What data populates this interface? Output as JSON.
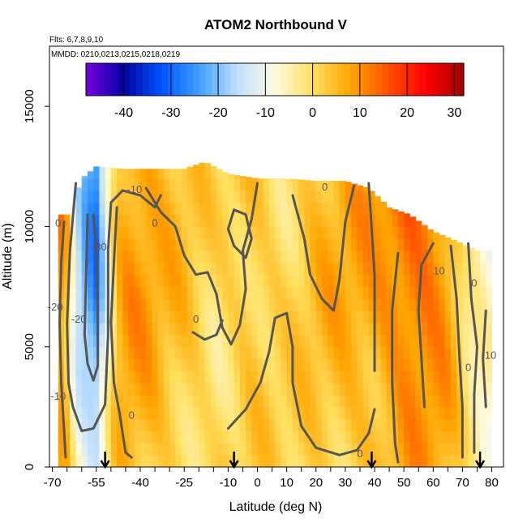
{
  "chart_data": {
    "type": "heatmap",
    "title": "ATOM2 Northbound V",
    "flights_note": "Flts: 6,7,8,9,10",
    "dates_note": "MMDD: 0210,0213,0215,0218,0219",
    "xlabel": "Latitude (deg N)",
    "ylabel": "Altitude (m)",
    "xlim": [
      -71,
      84
    ],
    "ylim": [
      0,
      17500
    ],
    "x_ticks": [
      -70,
      -55,
      -40,
      -25,
      -10,
      0,
      10,
      20,
      30,
      40,
      50,
      60,
      70,
      80
    ],
    "x_tick_labels": [
      "-70",
      "-55",
      "-40",
      "-25",
      "-10",
      "0",
      "10",
      "20",
      "30",
      "40",
      "50",
      "60",
      "70",
      "80"
    ],
    "y_ticks": [
      0,
      5000,
      10000,
      15000
    ],
    "y_tick_labels": [
      "0",
      "5000",
      "10000",
      "15000"
    ],
    "colorbar": {
      "min": -48,
      "max": 32,
      "ticks": [
        -40,
        -30,
        -20,
        -10,
        0,
        10,
        20,
        30
      ],
      "tick_labels": [
        "-40",
        "-30",
        "-20",
        "-10",
        "0",
        "10",
        "20",
        "30"
      ],
      "colors": [
        "#7a00e0",
        "#0000a0",
        "#0055ff",
        "#3fa0ff",
        "#bfe0ff",
        "#fffbe0",
        "#ffe060",
        "#ffa500",
        "#ff5000",
        "#ff0000",
        "#a00000"
      ]
    },
    "data_extent_lat": [
      -68,
      80
    ],
    "top_altitude_by_lat": [
      [
        -68,
        10500
      ],
      [
        -64,
        10500
      ],
      [
        -60,
        12000
      ],
      [
        -55,
        12500
      ],
      [
        -45,
        12400
      ],
      [
        -35,
        12400
      ],
      [
        -25,
        12400
      ],
      [
        -18,
        12700
      ],
      [
        -10,
        12200
      ],
      [
        0,
        12000
      ],
      [
        10,
        12000
      ],
      [
        20,
        11900
      ],
      [
        30,
        11900
      ],
      [
        38,
        11600
      ],
      [
        45,
        10800
      ],
      [
        52,
        10500
      ],
      [
        60,
        9800
      ],
      [
        68,
        9400
      ],
      [
        75,
        9000
      ],
      [
        80,
        9000
      ]
    ],
    "v_field_profile": [
      {
        "lat": -68,
        "v": 12
      },
      {
        "lat": -65,
        "v": 6
      },
      {
        "lat": -62,
        "v": -14
      },
      {
        "lat": -58,
        "v": -22
      },
      {
        "lat": -55,
        "v": -26
      },
      {
        "lat": -52,
        "v": -12
      },
      {
        "lat": -48,
        "v": 6
      },
      {
        "lat": -44,
        "v": 9
      },
      {
        "lat": -38,
        "v": 8
      },
      {
        "lat": -32,
        "v": 5
      },
      {
        "lat": -26,
        "v": 4
      },
      {
        "lat": -20,
        "v": 2
      },
      {
        "lat": -14,
        "v": 0
      },
      {
        "lat": -8,
        "v": 2
      },
      {
        "lat": -2,
        "v": 4
      },
      {
        "lat": 4,
        "v": 2
      },
      {
        "lat": 10,
        "v": 1
      },
      {
        "lat": 16,
        "v": 3
      },
      {
        "lat": 22,
        "v": 5
      },
      {
        "lat": 28,
        "v": 6
      },
      {
        "lat": 34,
        "v": 7
      },
      {
        "lat": 40,
        "v": 8
      },
      {
        "lat": 46,
        "v": 11
      },
      {
        "lat": 52,
        "v": 14
      },
      {
        "lat": 58,
        "v": 13
      },
      {
        "lat": 64,
        "v": 10
      },
      {
        "lat": 68,
        "v": 4
      },
      {
        "lat": 72,
        "v": -4
      },
      {
        "lat": 76,
        "v": -7
      },
      {
        "lat": 80,
        "v": -9
      }
    ],
    "contour_labels": [
      {
        "lat": -68,
        "alt": 10000,
        "text": "0"
      },
      {
        "lat": -54,
        "alt": 9000,
        "text": "-30"
      },
      {
        "lat": -69,
        "alt": 6500,
        "text": "-20"
      },
      {
        "lat": -61,
        "alt": 6000,
        "text": "-20"
      },
      {
        "lat": -68,
        "alt": 2800,
        "text": "-10"
      },
      {
        "lat": -42,
        "alt": 11400,
        "text": "-10"
      },
      {
        "lat": -35,
        "alt": 10000,
        "text": "0"
      },
      {
        "lat": -43,
        "alt": 2000,
        "text": "0"
      },
      {
        "lat": -21,
        "alt": 6000,
        "text": "0"
      },
      {
        "lat": 23,
        "alt": 11500,
        "text": "0"
      },
      {
        "lat": 35,
        "alt": 400,
        "text": "0"
      },
      {
        "lat": 62,
        "alt": 8000,
        "text": "10"
      },
      {
        "lat": 74,
        "alt": 7500,
        "text": "0"
      },
      {
        "lat": 72,
        "alt": 4000,
        "text": "0"
      },
      {
        "lat": 79,
        "alt": 4500,
        "text": "-10"
      }
    ],
    "arrow_markers_lat": [
      -52,
      -8,
      39,
      76
    ],
    "contour_lines": [
      {
        "level": -20,
        "points": [
          [
            -58,
            10500
          ],
          [
            -58.5,
            8000
          ],
          [
            -59,
            5500
          ],
          [
            -58,
            4300
          ],
          [
            -56,
            3600
          ],
          [
            -54.5,
            4200
          ],
          [
            -54.5,
            7000
          ],
          [
            -55,
            9000
          ],
          [
            -56,
            10500
          ]
        ]
      },
      {
        "level": -10,
        "points": [
          [
            -62,
            11800
          ],
          [
            -64,
            9000
          ],
          [
            -65,
            6000
          ],
          [
            -64.5,
            3500
          ],
          [
            -63,
            2500
          ],
          [
            -60,
            1500
          ],
          [
            -56,
            1600
          ],
          [
            -52,
            2600
          ],
          [
            -51,
            5500
          ],
          [
            -51,
            9000
          ],
          [
            -50,
            11000
          ],
          [
            -46,
            11500
          ],
          [
            -40,
            11300
          ],
          [
            -35,
            10800
          ],
          [
            -33,
            11300
          ]
        ]
      },
      {
        "level": 0,
        "points": [
          [
            -66,
            10200
          ],
          [
            -67,
            8500
          ],
          [
            -67.5,
            6000
          ],
          [
            -67,
            3500
          ],
          [
            -66,
            1500
          ],
          [
            -65.5,
            400
          ]
        ]
      },
      {
        "level": 0,
        "points": [
          [
            -48,
            10800
          ],
          [
            -49,
            8500
          ],
          [
            -50,
            6000
          ],
          [
            -49,
            3500
          ],
          [
            -47,
            2200
          ],
          [
            -45,
            600
          ],
          [
            -43,
            400
          ]
        ]
      },
      {
        "level": 0,
        "points": [
          [
            -38,
            11600
          ],
          [
            -33,
            10600
          ],
          [
            -28,
            10000
          ],
          [
            -25,
            8800
          ],
          [
            -21,
            8000
          ],
          [
            -17,
            8100
          ],
          [
            -14,
            7200
          ],
          [
            -12,
            5800
          ],
          [
            -9,
            5100
          ],
          [
            -6,
            5900
          ],
          [
            -4,
            7400
          ],
          [
            -5,
            9000
          ],
          [
            -2,
            10300
          ],
          [
            0,
            11800
          ]
        ]
      },
      {
        "level": 0,
        "points": [
          [
            -22,
            5600
          ],
          [
            -18,
            5300
          ],
          [
            -14,
            5500
          ],
          [
            -12,
            6100
          ]
        ]
      },
      {
        "level": 0,
        "points": [
          [
            -10,
            1600
          ],
          [
            -4,
            2400
          ],
          [
            1,
            3500
          ],
          [
            4,
            4800
          ],
          [
            6,
            6200
          ],
          [
            10,
            6400
          ],
          [
            12,
            5000
          ],
          [
            12,
            3500
          ],
          [
            15,
            1700
          ],
          [
            20,
            800
          ],
          [
            28,
            500
          ],
          [
            34,
            700
          ],
          [
            38,
            1400
          ],
          [
            40,
            2400
          ]
        ]
      },
      {
        "level": 0,
        "points": [
          [
            12,
            11300
          ],
          [
            16,
            9500
          ],
          [
            18,
            8000
          ],
          [
            22,
            7000
          ],
          [
            26,
            6500
          ],
          [
            28,
            7800
          ],
          [
            30,
            10200
          ],
          [
            33,
            11700
          ]
        ]
      },
      {
        "level": 0,
        "points": [
          [
            38,
            11800
          ],
          [
            40,
            8000
          ],
          [
            40,
            4000
          ]
        ]
      },
      {
        "level": 0,
        "points": [
          [
            48,
            8900
          ],
          [
            46,
            6500
          ],
          [
            46,
            3500
          ],
          [
            47,
            1000
          ],
          [
            48,
            200
          ]
        ]
      },
      {
        "level": 10,
        "points": [
          [
            60,
            9300
          ],
          [
            56,
            8400
          ],
          [
            55,
            6500
          ],
          [
            56,
            4500
          ],
          [
            57,
            2500
          ]
        ]
      },
      {
        "level": 10,
        "points": [
          [
            -10,
            9900
          ],
          [
            -8,
            9200
          ],
          [
            -4,
            8700
          ],
          [
            -2,
            9500
          ],
          [
            -4,
            10500
          ],
          [
            -8,
            10700
          ],
          [
            -10,
            9900
          ]
        ]
      },
      {
        "level": 0,
        "points": [
          [
            66,
            9200
          ],
          [
            68,
            7000
          ],
          [
            69,
            4500
          ],
          [
            70,
            2500
          ],
          [
            70,
            400
          ]
        ]
      },
      {
        "level": 0,
        "points": [
          [
            72,
            9300
          ],
          [
            73,
            7000
          ],
          [
            75,
            5000
          ],
          [
            74,
            3000
          ],
          [
            74,
            600
          ]
        ]
      },
      {
        "level": -10,
        "points": [
          [
            78,
            6500
          ],
          [
            77,
            4500
          ],
          [
            78,
            2500
          ]
        ]
      }
    ]
  }
}
